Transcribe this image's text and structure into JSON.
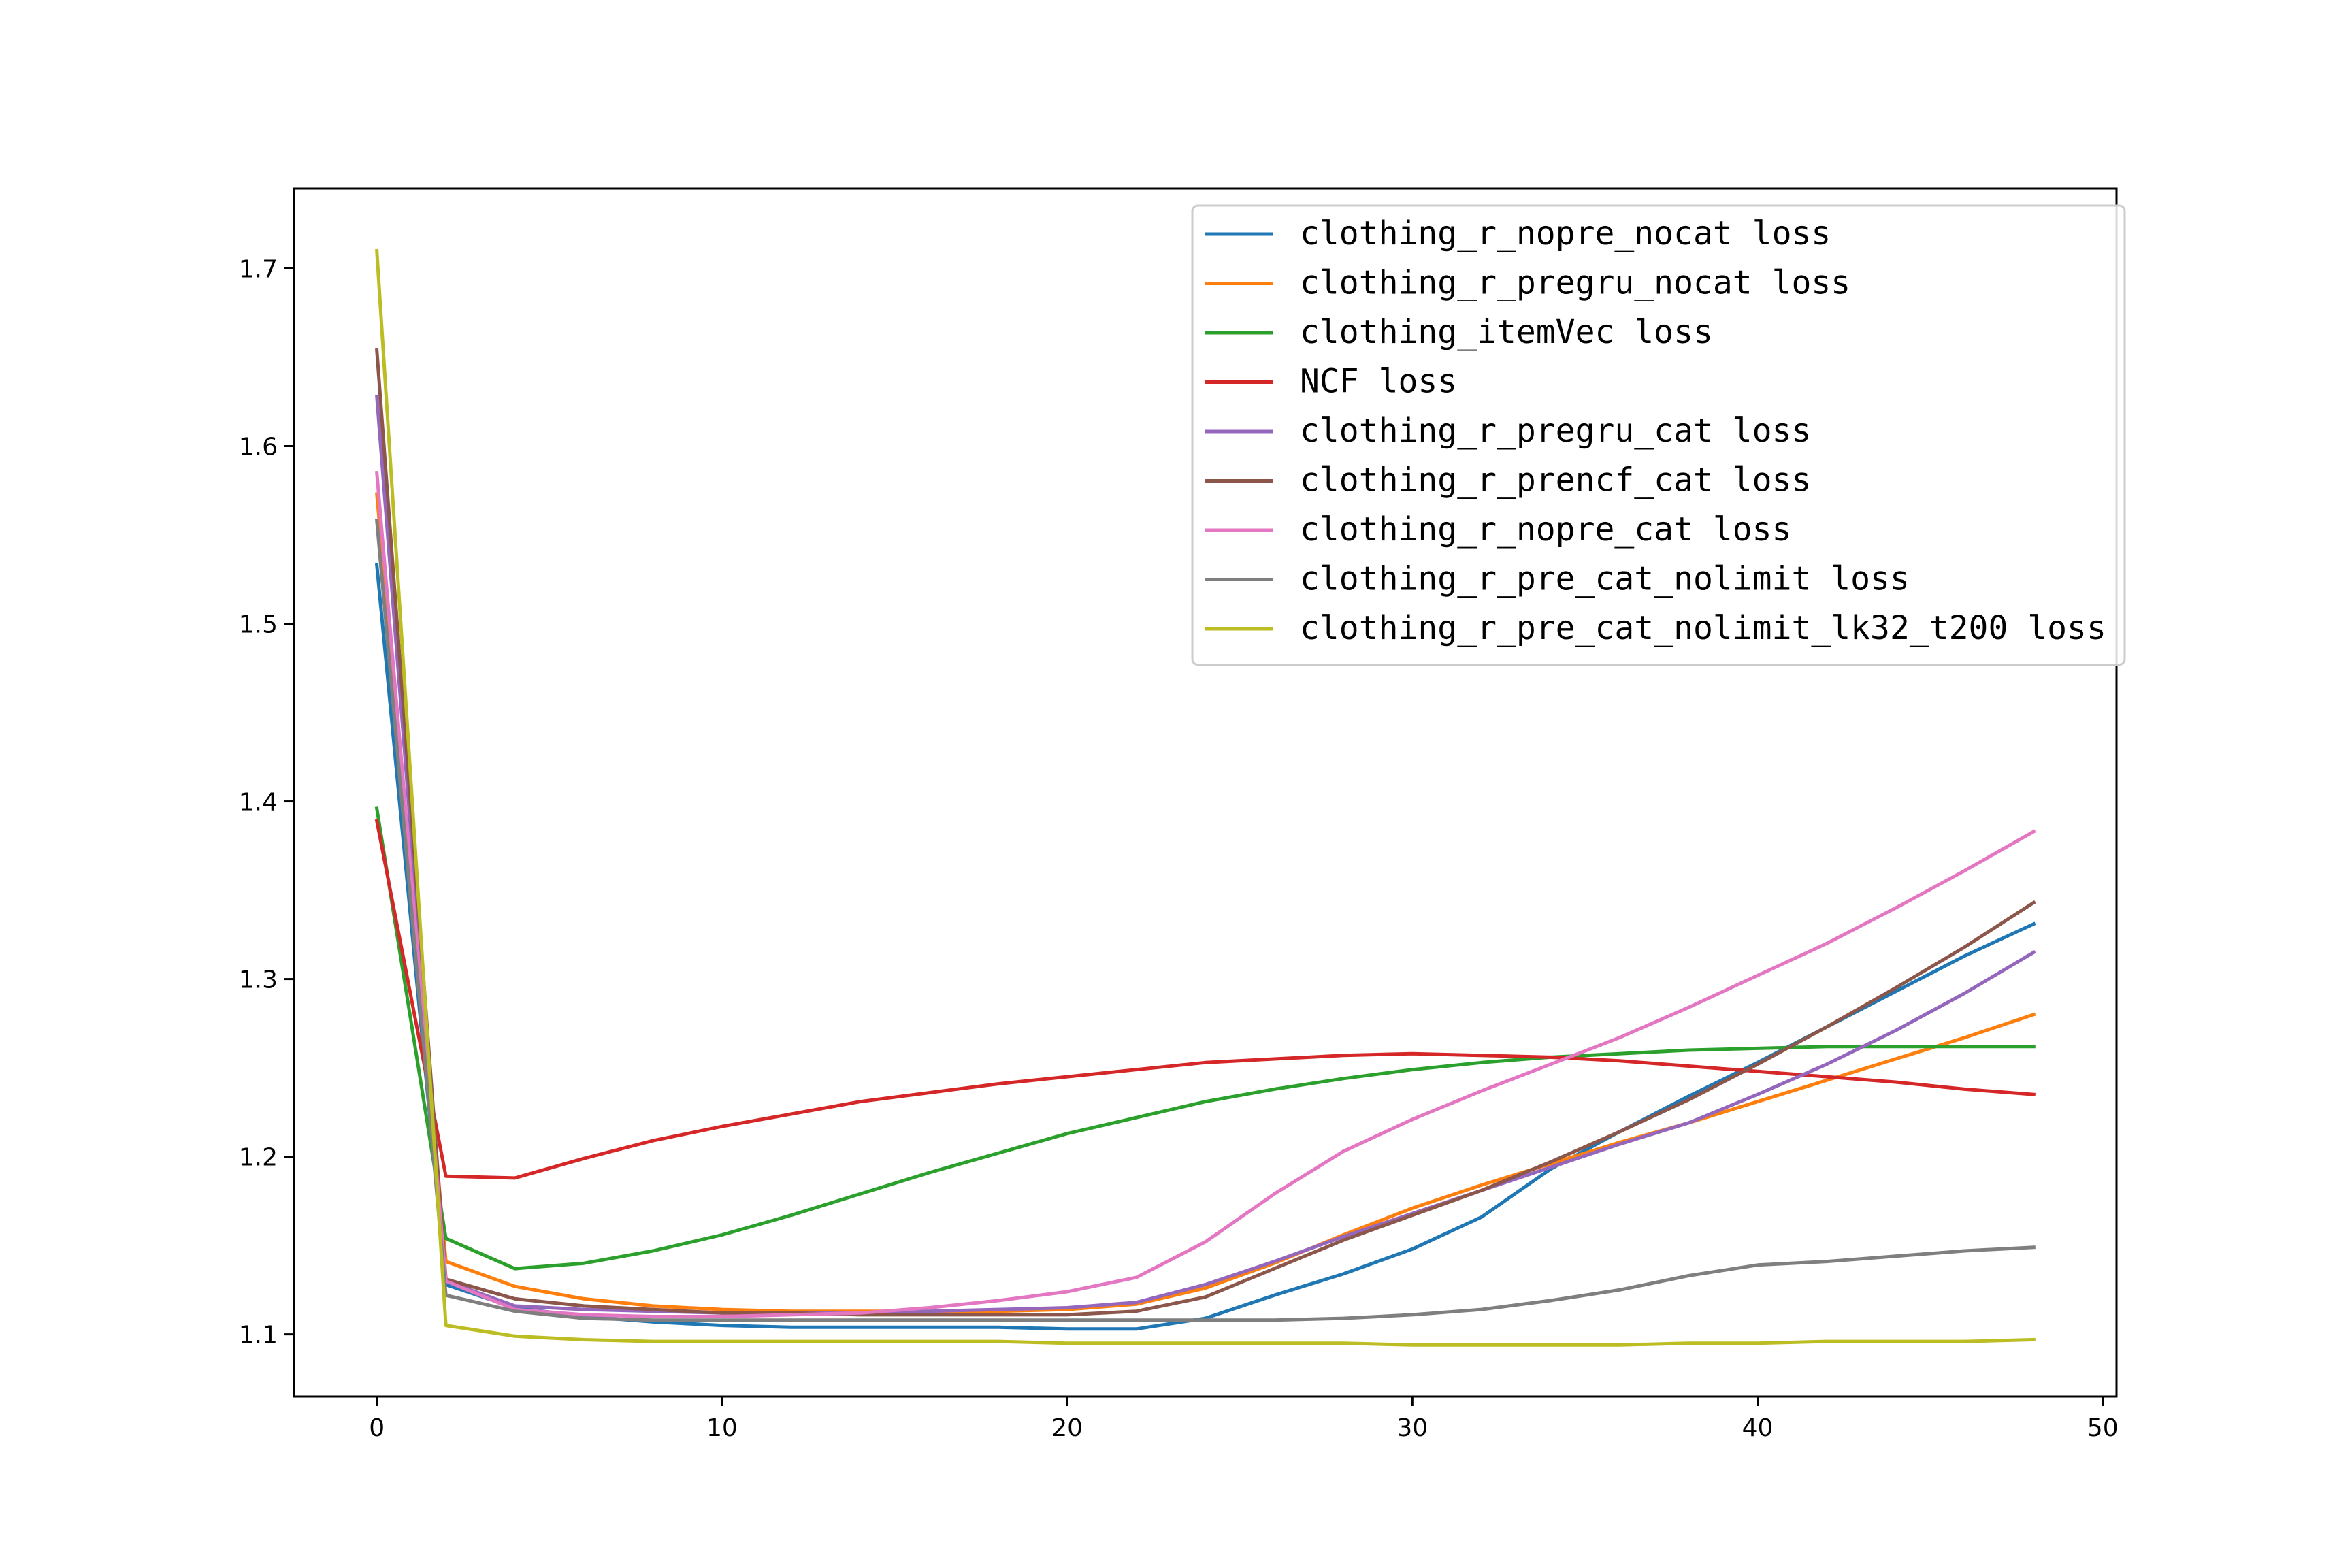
{
  "chart_data": {
    "type": "line",
    "title": "",
    "xlabel": "",
    "ylabel": "",
    "xlim": [
      -2.4,
      50.4
    ],
    "ylim": [
      1.065,
      1.745
    ],
    "x_ticks": [
      0,
      10,
      20,
      30,
      40,
      50
    ],
    "y_ticks": [
      1.1,
      1.2,
      1.3,
      1.4,
      1.5,
      1.6,
      1.7
    ],
    "x_tick_labels": [
      "0",
      "10",
      "20",
      "30",
      "40",
      "50"
    ],
    "y_tick_labels": [
      "1.1",
      "1.2",
      "1.3",
      "1.4",
      "1.5",
      "1.6",
      "1.7"
    ],
    "grid": false,
    "legend_position": "top-right",
    "x": [
      0,
      2,
      4,
      6,
      8,
      10,
      12,
      14,
      16,
      18,
      20,
      22,
      24,
      26,
      28,
      30,
      32,
      34,
      36,
      38,
      40,
      42,
      44,
      46,
      48
    ],
    "series": [
      {
        "name": "clothing_r_nopre_nocat loss",
        "color": "#1f77b4",
        "values": [
          1.533,
          1.128,
          1.115,
          1.11,
          1.107,
          1.105,
          1.104,
          1.104,
          1.104,
          1.104,
          1.103,
          1.103,
          1.109,
          1.122,
          1.134,
          1.148,
          1.166,
          1.193,
          1.214,
          1.234,
          1.253,
          1.273,
          1.293,
          1.313,
          1.331
        ]
      },
      {
        "name": "clothing_r_pregru_nocat loss",
        "color": "#ff7f0e",
        "values": [
          1.573,
          1.141,
          1.127,
          1.12,
          1.116,
          1.114,
          1.113,
          1.113,
          1.113,
          1.113,
          1.114,
          1.117,
          1.126,
          1.14,
          1.156,
          1.171,
          1.184,
          1.196,
          1.208,
          1.219,
          1.231,
          1.243,
          1.255,
          1.267,
          1.28
        ]
      },
      {
        "name": "clothing_itemVec loss",
        "color": "#2ca02c",
        "values": [
          1.396,
          1.154,
          1.137,
          1.14,
          1.147,
          1.156,
          1.167,
          1.179,
          1.191,
          1.202,
          1.213,
          1.222,
          1.231,
          1.238,
          1.244,
          1.249,
          1.253,
          1.256,
          1.258,
          1.26,
          1.261,
          1.262,
          1.262,
          1.262,
          1.262
        ]
      },
      {
        "name": "NCF loss",
        "color": "#d62728",
        "values": [
          1.389,
          1.189,
          1.188,
          1.199,
          1.209,
          1.217,
          1.224,
          1.231,
          1.236,
          1.241,
          1.245,
          1.249,
          1.253,
          1.255,
          1.257,
          1.258,
          1.257,
          1.256,
          1.254,
          1.251,
          1.248,
          1.245,
          1.242,
          1.238,
          1.235
        ]
      },
      {
        "name": "clothing_r_pregru_cat loss",
        "color": "#9467bd",
        "values": [
          1.628,
          1.13,
          1.116,
          1.114,
          1.113,
          1.112,
          1.112,
          1.112,
          1.113,
          1.114,
          1.115,
          1.118,
          1.128,
          1.141,
          1.155,
          1.168,
          1.181,
          1.194,
          1.207,
          1.219,
          1.235,
          1.252,
          1.271,
          1.292,
          1.315
        ]
      },
      {
        "name": "clothing_r_prencf_cat loss",
        "color": "#8c564b",
        "values": [
          1.654,
          1.131,
          1.12,
          1.116,
          1.114,
          1.112,
          1.112,
          1.111,
          1.111,
          1.111,
          1.111,
          1.113,
          1.121,
          1.137,
          1.153,
          1.167,
          1.181,
          1.197,
          1.214,
          1.232,
          1.252,
          1.273,
          1.295,
          1.318,
          1.343
        ]
      },
      {
        "name": "clothing_r_nopre_cat loss",
        "color": "#e377c2",
        "values": [
          1.585,
          1.13,
          1.114,
          1.111,
          1.11,
          1.11,
          1.111,
          1.112,
          1.115,
          1.119,
          1.124,
          1.132,
          1.152,
          1.179,
          1.203,
          1.221,
          1.237,
          1.252,
          1.267,
          1.284,
          1.302,
          1.32,
          1.34,
          1.361,
          1.383
        ]
      },
      {
        "name": "clothing_r_pre_cat_nolimit loss",
        "color": "#7f7f7f",
        "values": [
          1.558,
          1.122,
          1.113,
          1.109,
          1.108,
          1.108,
          1.108,
          1.108,
          1.108,
          1.108,
          1.108,
          1.108,
          1.108,
          1.108,
          1.109,
          1.111,
          1.114,
          1.119,
          1.125,
          1.133,
          1.139,
          1.141,
          1.144,
          1.147,
          1.149
        ]
      },
      {
        "name": "clothing_r_pre_cat_nolimit_lk32_t200 loss",
        "color": "#bcbd22",
        "values": [
          1.71,
          1.105,
          1.099,
          1.097,
          1.096,
          1.096,
          1.096,
          1.096,
          1.096,
          1.096,
          1.095,
          1.095,
          1.095,
          1.095,
          1.095,
          1.094,
          1.094,
          1.094,
          1.094,
          1.095,
          1.095,
          1.096,
          1.096,
          1.096,
          1.097
        ]
      }
    ]
  }
}
